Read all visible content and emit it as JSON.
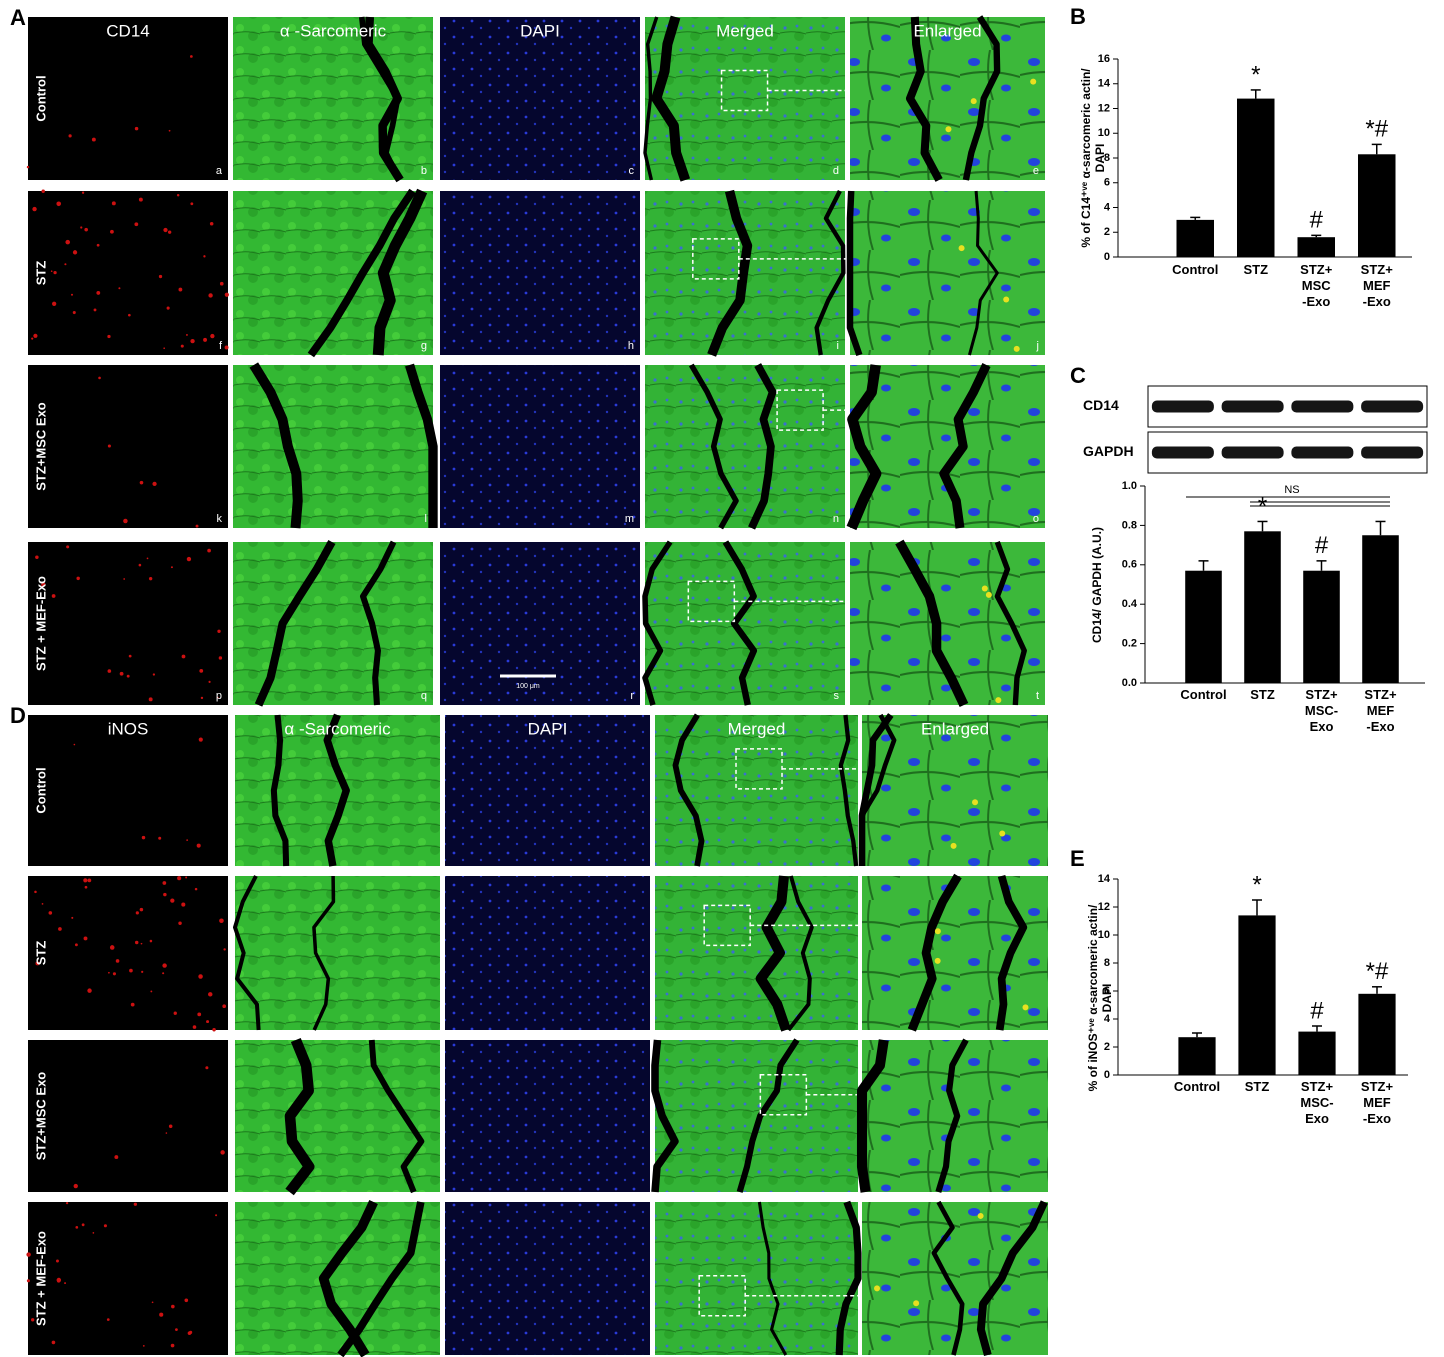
{
  "figure_a": {
    "label": "A",
    "columns": [
      "CD14",
      "α -Sarcomeric",
      "DAPI",
      "Merged",
      "Enlarged"
    ],
    "rows": [
      "Control",
      "STZ",
      "STZ+MSC Exo",
      "STZ + MEF-Exo"
    ],
    "sublabels": [
      "a",
      "b",
      "c",
      "d",
      "e",
      "f",
      "g",
      "h",
      "i",
      "j",
      "k",
      "l",
      "m",
      "n",
      "o",
      "p",
      "q",
      "r",
      "s",
      "t"
    ],
    "scale_bar": "100 μm"
  },
  "figure_d": {
    "label": "D",
    "columns": [
      "iNOS",
      "α -Sarcomeric",
      "DAPI",
      "Merged",
      "Enlarged"
    ],
    "rows": [
      "Control",
      "STZ",
      "STZ+MSC Exo",
      "STZ + MEF-Exo"
    ]
  },
  "chart_data": [
    {
      "type": "bar",
      "panel": "B",
      "y_label": "% of C14⁺ᵛᵉ α-sarcomeric actin/ DAPI",
      "categories": [
        "Control",
        "STZ",
        "STZ+\nMSC\n-Exo",
        "STZ+\nMEF\n-Exo"
      ],
      "values": [
        3.0,
        12.8,
        1.6,
        8.3
      ],
      "errors": [
        0.2,
        0.7,
        0.15,
        0.8
      ],
      "labels": [
        null,
        "*",
        "#",
        "*#"
      ],
      "color": "#000000",
      "ylim": [
        0,
        16
      ],
      "yticks": [
        0,
        2,
        4,
        6,
        8,
        10,
        12,
        14,
        16
      ]
    },
    {
      "type": "bar",
      "panel": "C",
      "blot_labels": [
        "CD14",
        "GAPDH"
      ],
      "ns_label": "NS",
      "y_label": "CD14/ GAPDH (A.U.)",
      "categories": [
        "Control",
        "STZ",
        "STZ+\nMSC-\nExo",
        "STZ+\nMEF\n-Exo"
      ],
      "values": [
        0.57,
        0.77,
        0.57,
        0.75
      ],
      "errors": [
        0.05,
        0.05,
        0.05,
        0.07
      ],
      "labels": [
        null,
        "*",
        "#",
        null
      ],
      "color": "#000000",
      "ylim": [
        0,
        1
      ],
      "yticks": [
        {
          "value": 0,
          "label": "0.0"
        },
        0.2,
        0.4,
        0.6,
        0.8,
        {
          "value": 1,
          "label": "1.0"
        }
      ]
    },
    {
      "type": "bar",
      "panel": "E",
      "y_label": "% of iNOS⁺ᵛᵉ α-sarcomeric actin/ DAPI",
      "categories": [
        "Control",
        "STZ",
        "STZ+\nMSC-\nExo",
        "STZ+\nMEF\n-Exo"
      ],
      "values": [
        2.7,
        11.4,
        3.1,
        5.8
      ],
      "errors": [
        0.3,
        1.1,
        0.4,
        0.5
      ],
      "labels": [
        null,
        "*",
        "#",
        "*#"
      ],
      "color": "#000000",
      "ylim": [
        0,
        14
      ],
      "yticks": [
        0,
        2,
        4,
        6,
        8,
        10,
        12,
        14
      ]
    }
  ]
}
